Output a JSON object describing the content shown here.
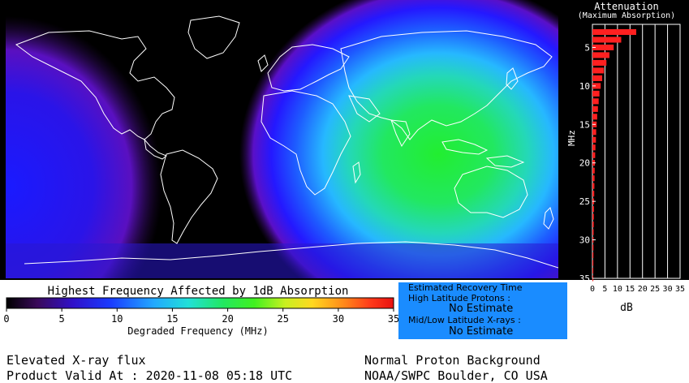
{
  "attenuation_panel": {
    "title": "Attenuation",
    "subtitle": "(Maximum Absorption)",
    "y_axis_label": "MHz",
    "x_axis_label": "dB",
    "y_ticks": [
      "5",
      "10",
      "15",
      "20",
      "25",
      "30",
      "35"
    ],
    "x_ticks": [
      "0",
      "5",
      "10",
      "15",
      "20",
      "25",
      "30",
      "35"
    ],
    "bar_color": "#ff2020"
  },
  "chart_data": {
    "type": "bar",
    "orientation": "horizontal",
    "xlabel": "dB",
    "ylabel": "MHz",
    "xlim": [
      0,
      35
    ],
    "ylim": [
      2,
      35
    ],
    "frequencies_mhz": [
      3,
      4,
      5,
      6,
      7,
      8,
      9,
      10,
      11,
      12,
      13,
      14,
      15,
      16,
      17,
      18,
      19,
      20,
      21,
      22,
      23,
      24,
      25,
      26,
      27,
      28,
      29,
      30,
      31,
      32,
      33,
      34,
      35
    ],
    "values_db": [
      17.5,
      11.5,
      8.5,
      6.8,
      5.6,
      4.6,
      3.9,
      3.3,
      2.8,
      2.5,
      2.2,
      1.9,
      1.7,
      1.5,
      1.4,
      1.2,
      1.1,
      1.0,
      0.9,
      0.85,
      0.78,
      0.72,
      0.66,
      0.61,
      0.57,
      0.53,
      0.49,
      0.46,
      0.43,
      0.4,
      0.38,
      0.36,
      0.34
    ]
  },
  "colorbar": {
    "title": "Highest Frequency Affected by 1dB Absorption",
    "xlabel": "Degraded Frequency (MHz)",
    "ticks": [
      "0",
      "5",
      "10",
      "15",
      "20",
      "25",
      "30",
      "35"
    ]
  },
  "recovery": {
    "title": "Estimated Recovery Time",
    "high_lat_label": "High Latitude Protons :",
    "high_lat_value": "No Estimate",
    "low_lat_label": "Mid/Low Latitude X-rays :",
    "low_lat_value": "No Estimate",
    "background_color": "#1a8cff"
  },
  "footer": {
    "left_line1": "Elevated X-ray flux",
    "left_line2": "Product Valid At : 2020-11-08 05:18 UTC",
    "right_line1": "Normal Proton Background",
    "right_line2": "NOAA/SWPC Boulder, CO USA"
  },
  "map": {
    "absorption_center": "Indian Ocean / Australia",
    "peak_degraded_frequency_mhz": 20,
    "colors": {
      "night": "#000000",
      "ring_purple": "#6a0dad",
      "blue": "#1a1aff",
      "cyan": "#22c8ff",
      "green": "#22e83a",
      "coastline": "#ffffff"
    }
  }
}
